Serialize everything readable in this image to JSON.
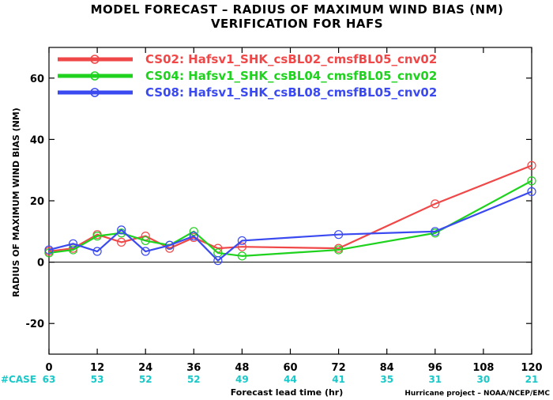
{
  "chart_data": {
    "type": "line",
    "title_line1": "MODEL FORECAST – RADIUS OF MAXIMUM WIND BIAS (NM)",
    "title_line2": "VERIFICATION FOR HAFS",
    "xlabel": "Forecast lead time (hr)",
    "ylabel": "RADIUS OF MAXIMUM WIND BIAS (NM)",
    "xlim": [
      0,
      120
    ],
    "ylim": [
      -30,
      70
    ],
    "xticks": [
      0,
      12,
      24,
      36,
      48,
      60,
      72,
      84,
      96,
      108,
      120
    ],
    "yticks": [
      -20,
      0,
      20,
      40,
      60
    ],
    "zero_line": true,
    "legend_position": "top-left",
    "case_label": "#CASE",
    "case_counts": [
      {
        "x": 0,
        "n": "63"
      },
      {
        "x": 12,
        "n": "53"
      },
      {
        "x": 24,
        "n": "52"
      },
      {
        "x": 36,
        "n": "52"
      },
      {
        "x": 48,
        "n": "49"
      },
      {
        "x": 60,
        "n": "44"
      },
      {
        "x": 72,
        "n": "41"
      },
      {
        "x": 84,
        "n": "35"
      },
      {
        "x": 96,
        "n": "31"
      },
      {
        "x": 108,
        "n": "30"
      },
      {
        "x": 120,
        "n": "21"
      }
    ],
    "series": [
      {
        "name": "CS02: Hafsv1_SHK_csBL02_cmsfBL05_cnv02",
        "color": "#f04848",
        "x": [
          0,
          6,
          12,
          18,
          24,
          30,
          36,
          42,
          48,
          72,
          96,
          120
        ],
        "y": [
          3.5,
          4.5,
          9.0,
          6.5,
          8.5,
          4.5,
          8.0,
          4.5,
          5.0,
          4.5,
          19.0,
          31.5
        ]
      },
      {
        "name": "CS04: Hafsv1_SHK_csBL04_cmsfBL05_cnv02",
        "color": "#1ed21e",
        "x": [
          0,
          6,
          12,
          18,
          24,
          30,
          36,
          42,
          48,
          72,
          96,
          120
        ],
        "y": [
          3.0,
          4.0,
          8.5,
          9.5,
          7.0,
          5.5,
          10.0,
          3.0,
          2.0,
          4.0,
          9.5,
          26.5
        ]
      },
      {
        "name": "CS08: Hafsv1_SHK_csBL08_cmsfBL05_cnv02",
        "color": "#3a4af0",
        "x": [
          0,
          6,
          12,
          18,
          24,
          30,
          36,
          42,
          48,
          72,
          96,
          120
        ],
        "y": [
          4.0,
          6.0,
          3.5,
          10.5,
          3.5,
          5.5,
          8.5,
          0.5,
          7.0,
          9.0,
          10.0,
          23.0
        ]
      }
    ]
  },
  "footer": {
    "credit": "Hurricane project – NOAA/NCEP/EMC"
  }
}
